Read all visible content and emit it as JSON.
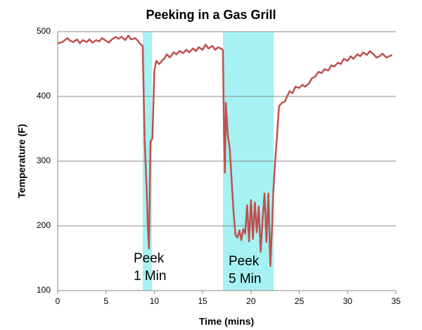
{
  "chart_data": {
    "type": "line",
    "title": "Peeking in a Gas Grill",
    "x_label": "Time (mins)",
    "y_label": "Temperature (F)",
    "color": "#c0504d",
    "highlight_color": "#a6f2f2",
    "grid": true,
    "xlim": [
      0,
      35
    ],
    "xticks": [
      0,
      5,
      10,
      15,
      20,
      25,
      30,
      35
    ],
    "ylim": [
      100,
      500
    ],
    "yticks": [
      100,
      200,
      300,
      400,
      500
    ],
    "highlights": [
      {
        "xlim": [
          8.8,
          9.75
        ]
      },
      {
        "xlim": [
          17.1,
          22.35
        ]
      }
    ],
    "annotations": [
      "Peek\n1 Min",
      "Peek\n5 Min"
    ],
    "x": [
      0,
      0.5,
      1,
      1.3,
      1.6,
      2,
      2.3,
      2.6,
      3,
      3.3,
      3.6,
      4,
      4.3,
      4.6,
      5,
      5.3,
      5.6,
      6,
      6.3,
      6.6,
      7,
      7.3,
      7.6,
      8,
      8.3,
      8.6,
      8.8,
      9.0,
      9.2,
      9.35,
      9.45,
      9.6,
      9.8,
      10,
      10.2,
      10.5,
      10.8,
      11,
      11.3,
      11.6,
      12,
      12.3,
      12.6,
      13,
      13.3,
      13.6,
      14,
      14.3,
      14.6,
      15,
      15.3,
      15.6,
      16,
      16.3,
      16.6,
      17,
      17.1,
      17.2,
      17.3,
      17.4,
      17.6,
      17.8,
      18,
      18.2,
      18.4,
      18.6,
      18.8,
      19,
      19.2,
      19.4,
      19.6,
      19.8,
      20,
      20.2,
      20.4,
      20.6,
      20.8,
      21,
      21.2,
      21.4,
      21.6,
      21.8,
      22,
      22.2,
      22.3,
      22.5,
      22.7,
      22.9,
      23.2,
      23.5,
      23.8,
      24,
      24.3,
      24.6,
      25,
      25.3,
      25.6,
      26,
      26.3,
      26.6,
      27,
      27.3,
      27.6,
      28,
      28.3,
      28.6,
      29,
      29.3,
      29.6,
      30,
      30.3,
      30.6,
      31,
      31.3,
      31.6,
      32,
      32.3,
      32.6,
      33,
      33.3,
      33.6,
      34,
      34.3,
      34.6
    ],
    "values": [
      482,
      484,
      490,
      486,
      484,
      488,
      482,
      487,
      484,
      488,
      483,
      487,
      485,
      490,
      486,
      483,
      488,
      492,
      489,
      492,
      487,
      494,
      488,
      490,
      486,
      480,
      478,
      330,
      260,
      190,
      165,
      330,
      335,
      440,
      455,
      450,
      455,
      458,
      465,
      460,
      468,
      465,
      470,
      467,
      472,
      468,
      474,
      470,
      476,
      472,
      480,
      474,
      478,
      472,
      476,
      473,
      470,
      350,
      282,
      390,
      340,
      320,
      270,
      220,
      185,
      182,
      193,
      178,
      195,
      188,
      232,
      176,
      240,
      180,
      236,
      190,
      230,
      160,
      210,
      250,
      175,
      250,
      138,
      205,
      250,
      300,
      340,
      385,
      390,
      392,
      402,
      408,
      405,
      415,
      413,
      418,
      415,
      420,
      428,
      430,
      438,
      436,
      442,
      440,
      448,
      446,
      452,
      450,
      458,
      455,
      462,
      458,
      465,
      462,
      468,
      464,
      470,
      466,
      460,
      462,
      466,
      460,
      462,
      464
    ]
  }
}
